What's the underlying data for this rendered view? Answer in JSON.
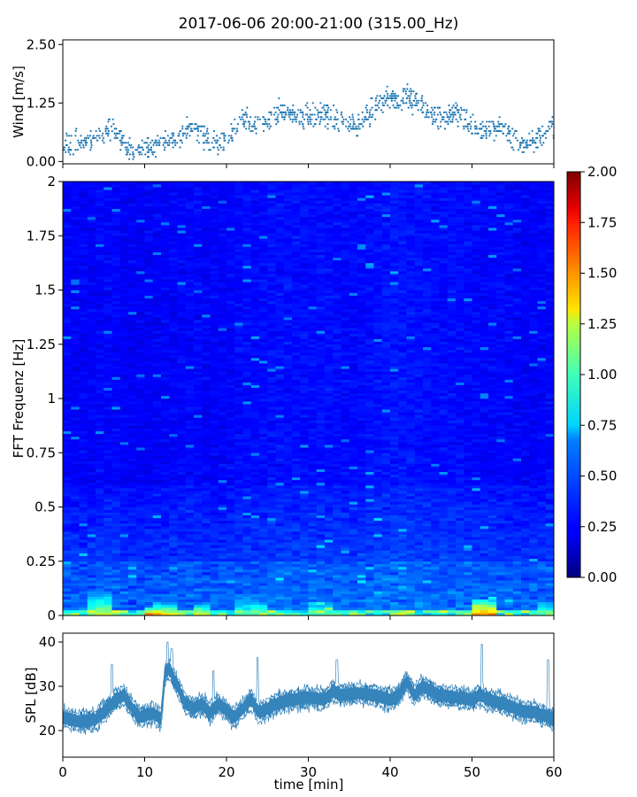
{
  "figure": {
    "title": "2017-06-06 20:00-21:00 (315.00_Hz)"
  },
  "chart_data": [
    {
      "type": "scatter",
      "panel": "wind",
      "ylabel": "Wind [m/s]",
      "xlim": [
        0,
        60
      ],
      "ylim": [
        -0.05,
        2.6
      ],
      "yticks": [
        0.0,
        1.25,
        2.5
      ],
      "ytick_labels": [
        "0.00",
        "1.25",
        "2.50"
      ],
      "marker_color": "#1f77b4",
      "wind_profile_m_s": [
        [
          0,
          0.35
        ],
        [
          4,
          0.45
        ],
        [
          6,
          0.75
        ],
        [
          8,
          0.25
        ],
        [
          10,
          0.25
        ],
        [
          12,
          0.35
        ],
        [
          14,
          0.55
        ],
        [
          16,
          0.75
        ],
        [
          18,
          0.35
        ],
        [
          20,
          0.45
        ],
        [
          22,
          0.95
        ],
        [
          24,
          0.75
        ],
        [
          26,
          1.05
        ],
        [
          28,
          1.05
        ],
        [
          30,
          0.95
        ],
        [
          32,
          1.05
        ],
        [
          34,
          0.85
        ],
        [
          36,
          0.75
        ],
        [
          38,
          1.15
        ],
        [
          40,
          1.35
        ],
        [
          42,
          1.35
        ],
        [
          44,
          1.15
        ],
        [
          46,
          0.95
        ],
        [
          48,
          1.05
        ],
        [
          50,
          0.75
        ],
        [
          52,
          0.65
        ],
        [
          54,
          0.75
        ],
        [
          56,
          0.35
        ],
        [
          58,
          0.45
        ],
        [
          60,
          0.75
        ]
      ]
    },
    {
      "type": "heatmap",
      "panel": "spectrogram",
      "ylabel": "FFT Frequenz [Hz]",
      "xlim": [
        0,
        60
      ],
      "ylim": [
        0,
        2
      ],
      "yticks": [
        0,
        0.25,
        0.5,
        0.75,
        1,
        1.25,
        1.5,
        1.75,
        2
      ],
      "ytick_labels": [
        "0",
        "0.25",
        "0.5",
        "0.75",
        "1",
        "1.25",
        "1.5",
        "1.75",
        "2"
      ],
      "colormap": "jet",
      "colorbar": {
        "vmin": 0.0,
        "vmax": 2.0,
        "ticks": [
          0.0,
          0.25,
          0.5,
          0.75,
          1.0,
          1.25,
          1.5,
          1.75,
          2.0
        ],
        "tick_labels": [
          "0.00",
          "0.25",
          "0.50",
          "0.75",
          "1.00",
          "1.25",
          "1.50",
          "1.75",
          "2.00"
        ]
      },
      "low_freq_hotspots": [
        {
          "t": [
            3,
            6
          ],
          "f": [
            0,
            0.12
          ],
          "level": 1.1
        },
        {
          "t": [
            10,
            11.5
          ],
          "f": [
            0,
            0.04
          ],
          "level": 1.6
        },
        {
          "t": [
            11,
            14
          ],
          "f": [
            0,
            0.06
          ],
          "level": 1.3
        },
        {
          "t": [
            16,
            18
          ],
          "f": [
            0,
            0.06
          ],
          "level": 1.2
        },
        {
          "t": [
            21,
            25
          ],
          "f": [
            0,
            0.1
          ],
          "level": 0.9
        },
        {
          "t": [
            30,
            33
          ],
          "f": [
            0,
            0.1
          ],
          "level": 0.9
        },
        {
          "t": [
            50,
            53
          ],
          "f": [
            0,
            0.08
          ],
          "level": 1.5
        },
        {
          "t": [
            58,
            60
          ],
          "f": [
            0,
            0.08
          ],
          "level": 1.0
        }
      ]
    },
    {
      "type": "line",
      "panel": "spl",
      "ylabel": "SPL [dB]",
      "xlabel": "time [min]",
      "xlim": [
        0,
        60
      ],
      "ylim": [
        14,
        42
      ],
      "yticks": [
        20,
        30,
        40
      ],
      "ytick_labels": [
        "20",
        "30",
        "40"
      ],
      "xticks": [
        0,
        10,
        20,
        30,
        40,
        50,
        60
      ],
      "xtick_labels": [
        "0",
        "10",
        "20",
        "30",
        "40",
        "50",
        "60"
      ],
      "line_color": "#1f77b4",
      "spl_profile_dB": [
        [
          0,
          23
        ],
        [
          2,
          22
        ],
        [
          4,
          22.5
        ],
        [
          5.5,
          25
        ],
        [
          6.5,
          27
        ],
        [
          7.5,
          28
        ],
        [
          8.5,
          25
        ],
        [
          9.5,
          23
        ],
        [
          11,
          24
        ],
        [
          12,
          22.5
        ],
        [
          12.5,
          33
        ],
        [
          13,
          34
        ],
        [
          14,
          30
        ],
        [
          15,
          26
        ],
        [
          16,
          25
        ],
        [
          17,
          26
        ],
        [
          18,
          24
        ],
        [
          19,
          26
        ],
        [
          20,
          24.5
        ],
        [
          21,
          23
        ],
        [
          22,
          25
        ],
        [
          23,
          27
        ],
        [
          24,
          24
        ],
        [
          25,
          25
        ],
        [
          26,
          26
        ],
        [
          28,
          27
        ],
        [
          30,
          27.5
        ],
        [
          32,
          27
        ],
        [
          33,
          29
        ],
        [
          34,
          28
        ],
        [
          36,
          28.5
        ],
        [
          38,
          28
        ],
        [
          40,
          27
        ],
        [
          41,
          28
        ],
        [
          42,
          31
        ],
        [
          43,
          28
        ],
        [
          44,
          30
        ],
        [
          45,
          29
        ],
        [
          46,
          28
        ],
        [
          48,
          27.5
        ],
        [
          50,
          27
        ],
        [
          51,
          28
        ],
        [
          52,
          27
        ],
        [
          54,
          26
        ],
        [
          56,
          24.5
        ],
        [
          58,
          24
        ],
        [
          60,
          22.5
        ]
      ]
    }
  ]
}
